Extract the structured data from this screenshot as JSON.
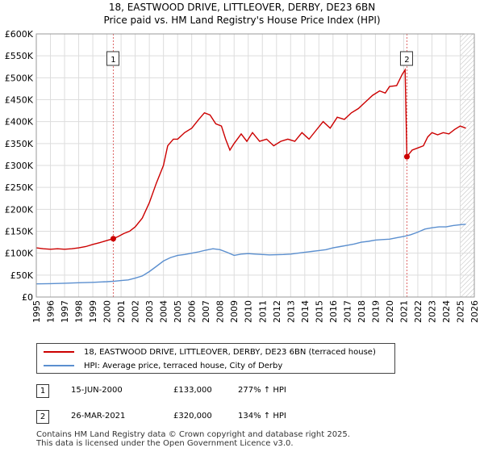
{
  "title_line1": "18, EASTWOOD DRIVE, LITTLEOVER, DERBY, DE23 6BN",
  "title_line2": "Price paid vs. HM Land Registry's House Price Index (HPI)",
  "colors": {
    "price": "#cc0000",
    "hpi": "#5b8fcf",
    "grid": "#dddddd",
    "marker_line": "#dd6666"
  },
  "chart_data": {
    "type": "line",
    "ylim": [
      0,
      600000
    ],
    "xlim": [
      1995,
      2026
    ],
    "yticks": [
      {
        "v": 0,
        "label": "£0"
      },
      {
        "v": 50000,
        "label": "£50K"
      },
      {
        "v": 100000,
        "label": "£100K"
      },
      {
        "v": 150000,
        "label": "£150K"
      },
      {
        "v": 200000,
        "label": "£200K"
      },
      {
        "v": 250000,
        "label": "£250K"
      },
      {
        "v": 300000,
        "label": "£300K"
      },
      {
        "v": 350000,
        "label": "£350K"
      },
      {
        "v": 400000,
        "label": "£400K"
      },
      {
        "v": 450000,
        "label": "£450K"
      },
      {
        "v": 500000,
        "label": "£500K"
      },
      {
        "v": 550000,
        "label": "£550K"
      },
      {
        "v": 600000,
        "label": "£600K"
      }
    ],
    "xticks": [
      "1995",
      "1996",
      "1997",
      "1998",
      "1999",
      "2000",
      "2001",
      "2002",
      "2003",
      "2004",
      "2005",
      "2006",
      "2007",
      "2008",
      "2009",
      "2010",
      "2011",
      "2012",
      "2013",
      "2014",
      "2015",
      "2016",
      "2017",
      "2018",
      "2019",
      "2020",
      "2021",
      "2022",
      "2023",
      "2024",
      "2025",
      "2026"
    ],
    "series": [
      {
        "name": "18, EASTWOOD DRIVE, LITTLEOVER, DERBY, DE23 6BN (terraced house)",
        "points": [
          [
            1995.0,
            112000
          ],
          [
            1995.5,
            110000
          ],
          [
            1996.0,
            109000
          ],
          [
            1996.5,
            110000
          ],
          [
            1997.0,
            109000
          ],
          [
            1997.5,
            110000
          ],
          [
            1998.0,
            112000
          ],
          [
            1998.5,
            115000
          ],
          [
            1999.0,
            120000
          ],
          [
            1999.5,
            124000
          ],
          [
            2000.0,
            129000
          ],
          [
            2000.45,
            133000
          ],
          [
            2000.8,
            138000
          ],
          [
            2001.2,
            145000
          ],
          [
            2001.6,
            150000
          ],
          [
            2002.0,
            160000
          ],
          [
            2002.5,
            180000
          ],
          [
            2003.0,
            215000
          ],
          [
            2003.5,
            260000
          ],
          [
            2004.0,
            300000
          ],
          [
            2004.3,
            345000
          ],
          [
            2004.7,
            360000
          ],
          [
            2005.0,
            360000
          ],
          [
            2005.5,
            375000
          ],
          [
            2006.0,
            385000
          ],
          [
            2006.5,
            405000
          ],
          [
            2006.9,
            420000
          ],
          [
            2007.3,
            415000
          ],
          [
            2007.7,
            395000
          ],
          [
            2008.1,
            390000
          ],
          [
            2008.4,
            360000
          ],
          [
            2008.7,
            335000
          ],
          [
            2009.0,
            350000
          ],
          [
            2009.5,
            372000
          ],
          [
            2009.9,
            355000
          ],
          [
            2010.3,
            375000
          ],
          [
            2010.8,
            355000
          ],
          [
            2011.3,
            360000
          ],
          [
            2011.8,
            345000
          ],
          [
            2012.3,
            355000
          ],
          [
            2012.8,
            360000
          ],
          [
            2013.3,
            355000
          ],
          [
            2013.8,
            375000
          ],
          [
            2014.3,
            360000
          ],
          [
            2014.8,
            380000
          ],
          [
            2015.3,
            400000
          ],
          [
            2015.8,
            385000
          ],
          [
            2016.3,
            410000
          ],
          [
            2016.8,
            405000
          ],
          [
            2017.3,
            420000
          ],
          [
            2017.8,
            430000
          ],
          [
            2018.3,
            445000
          ],
          [
            2018.8,
            460000
          ],
          [
            2019.3,
            470000
          ],
          [
            2019.7,
            465000
          ],
          [
            2020.0,
            480000
          ],
          [
            2020.5,
            482000
          ],
          [
            2020.9,
            508000
          ],
          [
            2021.1,
            518000
          ],
          [
            2021.23,
            320000
          ],
          [
            2021.6,
            335000
          ],
          [
            2022.0,
            340000
          ],
          [
            2022.4,
            345000
          ],
          [
            2022.7,
            365000
          ],
          [
            2023.0,
            375000
          ],
          [
            2023.4,
            370000
          ],
          [
            2023.8,
            375000
          ],
          [
            2024.2,
            372000
          ],
          [
            2024.6,
            382000
          ],
          [
            2025.0,
            390000
          ],
          [
            2025.4,
            385000
          ]
        ]
      },
      {
        "name": "HPI: Average price, terraced house, City of Derby",
        "points": [
          [
            1995.0,
            30000
          ],
          [
            1996.0,
            30500
          ],
          [
            1997.0,
            31500
          ],
          [
            1998.0,
            32500
          ],
          [
            1999.0,
            33500
          ],
          [
            2000.0,
            35000
          ],
          [
            2000.5,
            36000
          ],
          [
            2001.0,
            37500
          ],
          [
            2001.5,
            39000
          ],
          [
            2002.0,
            43000
          ],
          [
            2002.5,
            48000
          ],
          [
            2003.0,
            58000
          ],
          [
            2003.5,
            70000
          ],
          [
            2004.0,
            82000
          ],
          [
            2004.5,
            90000
          ],
          [
            2005.0,
            95000
          ],
          [
            2005.5,
            97000
          ],
          [
            2006.0,
            100000
          ],
          [
            2006.5,
            103000
          ],
          [
            2007.0,
            107000
          ],
          [
            2007.5,
            110000
          ],
          [
            2008.0,
            108000
          ],
          [
            2008.5,
            102000
          ],
          [
            2009.0,
            95000
          ],
          [
            2009.5,
            98000
          ],
          [
            2010.0,
            99000
          ],
          [
            2010.5,
            98000
          ],
          [
            2011.0,
            97000
          ],
          [
            2011.5,
            96000
          ],
          [
            2012.0,
            96500
          ],
          [
            2012.5,
            97000
          ],
          [
            2013.0,
            98000
          ],
          [
            2013.5,
            100000
          ],
          [
            2014.0,
            102000
          ],
          [
            2014.5,
            104000
          ],
          [
            2015.0,
            106000
          ],
          [
            2015.5,
            108000
          ],
          [
            2016.0,
            112000
          ],
          [
            2016.5,
            115000
          ],
          [
            2017.0,
            118000
          ],
          [
            2017.5,
            121000
          ],
          [
            2018.0,
            125000
          ],
          [
            2018.5,
            127000
          ],
          [
            2019.0,
            130000
          ],
          [
            2019.5,
            131000
          ],
          [
            2020.0,
            132000
          ],
          [
            2020.5,
            135000
          ],
          [
            2021.0,
            138000
          ],
          [
            2021.5,
            142000
          ],
          [
            2022.0,
            148000
          ],
          [
            2022.5,
            155000
          ],
          [
            2023.0,
            158000
          ],
          [
            2023.5,
            160000
          ],
          [
            2024.0,
            160000
          ],
          [
            2024.5,
            163000
          ],
          [
            2025.0,
            165000
          ],
          [
            2025.4,
            166000
          ]
        ]
      }
    ],
    "markers": [
      {
        "label": "1",
        "x": 2000.45,
        "y": 133000
      },
      {
        "label": "2",
        "x": 2021.23,
        "y": 320000
      }
    ],
    "hatch_from": 2025.0
  },
  "legend": {
    "price_label": "18, EASTWOOD DRIVE, LITTLEOVER, DERBY, DE23 6BN (terraced house)",
    "hpi_label": "HPI: Average price, terraced house, City of Derby"
  },
  "transactions": [
    {
      "num": "1",
      "date": "15-JUN-2000",
      "price": "£133,000",
      "hpi": "277% ↑ HPI"
    },
    {
      "num": "2",
      "date": "26-MAR-2021",
      "price": "£320,000",
      "hpi": "134% ↑ HPI"
    }
  ],
  "footer_line1": "Contains HM Land Registry data © Crown copyright and database right 2025.",
  "footer_line2": "This data is licensed under the Open Government Licence v3.0."
}
